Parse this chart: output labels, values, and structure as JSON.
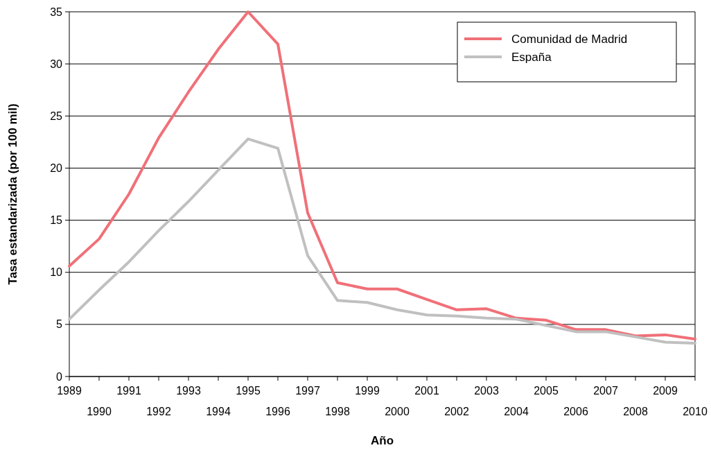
{
  "chart_data": {
    "type": "line",
    "xlabel": "Año",
    "ylabel": "Tasa estandarizada (por 100 mil)",
    "categories": [
      "1989",
      "1990",
      "1991",
      "1992",
      "1993",
      "1994",
      "1995",
      "1996",
      "1997",
      "1998",
      "1999",
      "2000",
      "2001",
      "2002",
      "2003",
      "2004",
      "2005",
      "2006",
      "2007",
      "2008",
      "2009",
      "2010"
    ],
    "series": [
      {
        "name": "Comunidad de Madrid",
        "color": "#f07078",
        "values": [
          10.6,
          13.2,
          17.5,
          22.9,
          27.3,
          31.4,
          35,
          31.9,
          15.7,
          9,
          8.4,
          8.4,
          7.4,
          6.4,
          6.5,
          5.6,
          5.4,
          4.5,
          4.5,
          3.9,
          4.0,
          3.6
        ]
      },
      {
        "name": "España",
        "color": "#c0c0c0",
        "values": [
          5.5,
          8.3,
          11,
          14,
          16.8,
          19.8,
          22.8,
          21.9,
          11.6,
          7.3,
          7.1,
          6.4,
          5.9,
          5.8,
          5.6,
          5.5,
          4.9,
          4.3,
          4.3,
          3.8,
          3.3,
          3.2
        ]
      }
    ],
    "ylim": [
      0,
      35
    ],
    "yticks": [
      0,
      5,
      10,
      15,
      20,
      25,
      30,
      35
    ],
    "grid": "y",
    "legend": "top right",
    "marker": "none",
    "line_style": "solid"
  }
}
